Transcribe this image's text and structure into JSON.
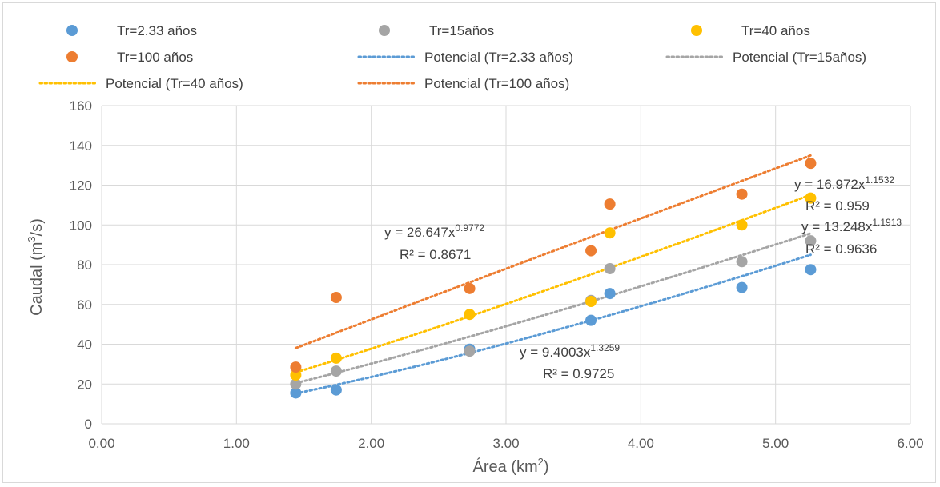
{
  "chart_data": {
    "type": "scatter",
    "title": "",
    "xlabel": "Área (km",
    "xlabel_sup": "2",
    "xlabel_tail": ")",
    "ylabel": "Caudal (m",
    "ylabel_sup": "3",
    "ylabel_tail": "/s)",
    "xlim": [
      0,
      6
    ],
    "ylim": [
      0,
      160
    ],
    "x_ticks": [
      "0.00",
      "1.00",
      "2.00",
      "3.00",
      "4.00",
      "5.00",
      "6.00"
    ],
    "y_ticks": [
      "0",
      "20",
      "40",
      "60",
      "80",
      "100",
      "120",
      "140",
      "160"
    ],
    "grid": true,
    "legend_position": "top",
    "series": [
      {
        "name": "Tr=2.33 años",
        "color": "#5b9bd5",
        "x": [
          1.44,
          1.74,
          2.73,
          3.63,
          3.77,
          4.75,
          5.26
        ],
        "y": [
          15.5,
          17,
          37.5,
          52,
          65.5,
          68.5,
          77.5
        ],
        "trend_name": "Potencial (Tr=2.33 años)",
        "trend_coef": 9.4003,
        "trend_exp": 1.3259,
        "eq_main": "y = 9.4003x",
        "eq_sup": "1.3259",
        "r2": "R² = 0.9725"
      },
      {
        "name": "Tr=15años",
        "color": "#a5a5a5",
        "x": [
          1.44,
          1.74,
          2.73,
          3.63,
          3.77,
          4.75,
          5.26
        ],
        "y": [
          20,
          26.5,
          36.5,
          62,
          78,
          81.5,
          92
        ],
        "trend_name": "Potencial (Tr=15años)",
        "trend_coef": 13.248,
        "trend_exp": 1.1913,
        "eq_main": "y = 13.248x",
        "eq_sup": "1.1913",
        "r2": "R² = 0.9636"
      },
      {
        "name": "Tr=40 años",
        "color": "#ffc000",
        "x": [
          1.44,
          1.74,
          2.73,
          3.63,
          3.77,
          4.75,
          5.26
        ],
        "y": [
          24.5,
          33,
          55,
          61.5,
          96,
          100,
          113.5
        ],
        "trend_name": "Potencial (Tr=40 años)",
        "trend_coef": 16.972,
        "trend_exp": 1.1532,
        "eq_main": "y = 16.972x",
        "eq_sup": "1.1532",
        "r2": "R² = 0.959"
      },
      {
        "name": "Tr=100 años",
        "color": "#ed7d31",
        "x": [
          1.44,
          1.74,
          2.73,
          3.63,
          3.77,
          4.75,
          5.26
        ],
        "y": [
          28.5,
          63.5,
          68,
          87,
          110.5,
          115.5,
          131
        ],
        "trend_name": "Potencial (Tr=100 años)",
        "trend_coef": 26.647,
        "trend_exp": 0.9772,
        "eq_main": "y = 26.647x",
        "eq_sup": "0.9772",
        "r2": "R² = 0.8671"
      }
    ]
  }
}
